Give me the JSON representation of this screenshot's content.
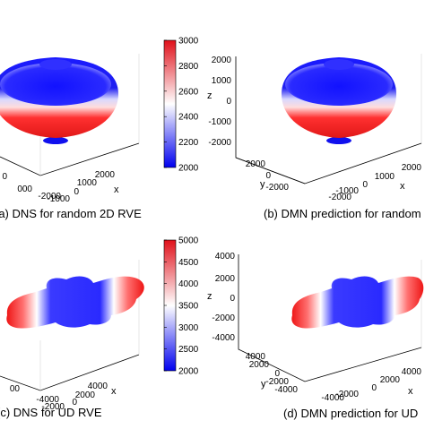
{
  "panels": {
    "a": {
      "caption": "(a) DNS for random 2D RVE",
      "x_axis_label": "x",
      "x_ticks": [
        "-2000",
        "-1000",
        "0",
        "1000",
        "2000"
      ]
    },
    "b": {
      "caption": "(b) DMN prediction for random",
      "z_axis_label": "z",
      "x_axis_label": "x",
      "y_axis_label": "y",
      "z_ticks": [
        "2000",
        "1000",
        "0",
        "-1000",
        "-2000"
      ],
      "x_ticks": [
        "-2000",
        "-1000",
        "0",
        "1000",
        "2000"
      ],
      "y_ticks": [
        "2000",
        "0",
        "-2000"
      ]
    },
    "c": {
      "caption": "(c) DNS for UD RVE",
      "x_axis_label": "x",
      "x_ticks": [
        "-4000",
        "-2000",
        "0",
        "2000",
        "4000"
      ]
    },
    "d": {
      "caption": "(d) DMN prediction for UD",
      "z_axis_label": "z",
      "x_axis_label": "x",
      "y_axis_label": "y",
      "z_ticks": [
        "4000",
        "2000",
        "0",
        "-2000",
        "-4000"
      ],
      "x_ticks": [
        "-4000",
        "-2000",
        "0",
        "2000",
        "4000"
      ],
      "y_ticks": [
        "4000",
        "2000",
        "0",
        "-2000",
        "-4000"
      ]
    }
  },
  "colorbar_top": {
    "ticks": [
      "3000",
      "2800",
      "2600",
      "2400",
      "2200",
      "2000"
    ],
    "colors": [
      "#e0101a",
      "#ffffff",
      "#0000ee"
    ]
  },
  "colorbar_bottom": {
    "ticks": [
      "5000",
      "4500",
      "4000",
      "3500",
      "3000",
      "2500",
      "2000"
    ],
    "colors": [
      "#e0101a",
      "#ffffff",
      "#0000ee"
    ]
  }
}
